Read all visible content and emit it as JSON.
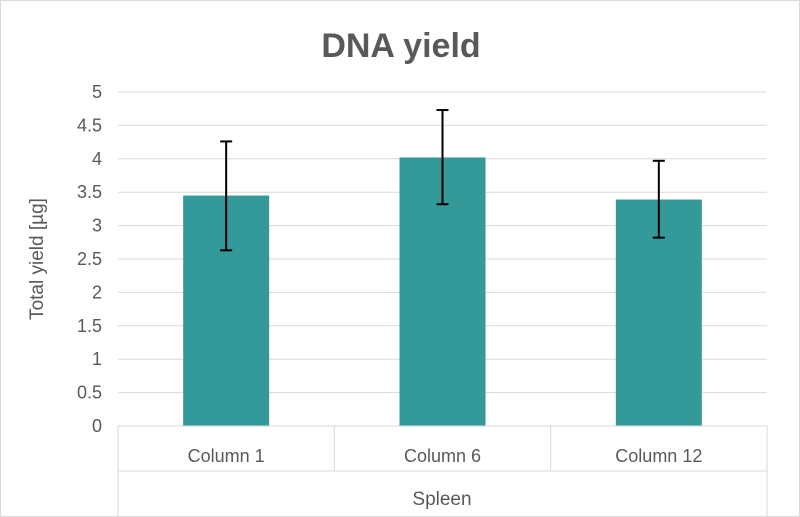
{
  "chart_data": {
    "type": "bar",
    "title": "DNA yield",
    "xlabel": "",
    "ylabel": "Total yield [µg]",
    "group_label": "Spleen",
    "categories": [
      "Column 1",
      "Column 6",
      "Column 12"
    ],
    "values": [
      3.45,
      4.02,
      3.39
    ],
    "error_low": [
      2.63,
      3.32,
      2.82
    ],
    "error_high": [
      4.26,
      4.73,
      3.97
    ],
    "ylim": [
      0,
      5
    ],
    "yticks": [
      "0",
      "0.5",
      "1",
      "1.5",
      "2",
      "2.5",
      "3",
      "3.5",
      "4",
      "4.5",
      "5"
    ],
    "grid": true,
    "legend": "none",
    "colors": {
      "bar": "#339999",
      "gridline": "#d9d9d9",
      "text": "#595959",
      "errorbar": "#000000"
    }
  }
}
